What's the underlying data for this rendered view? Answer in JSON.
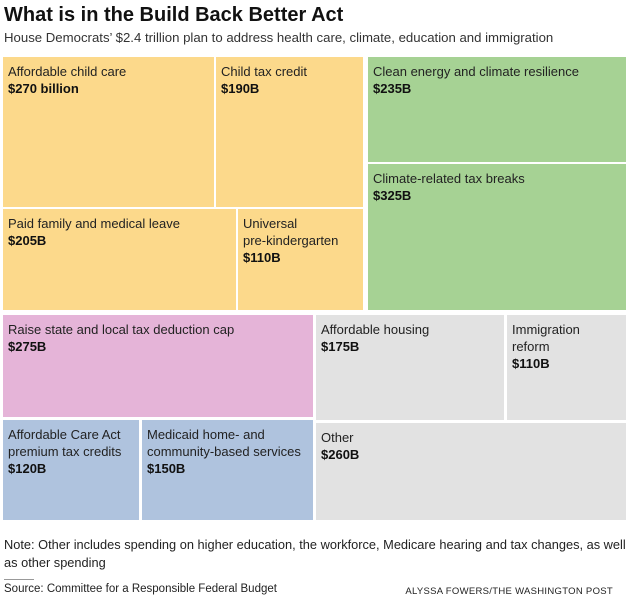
{
  "header": {
    "title": "What is in the Build Back Better Act",
    "subtitle": "House Democrats’ $2.4 trillion plan to address health care, climate, education and immigration"
  },
  "chart_data": {
    "type": "treemap",
    "title": "What is in the Build Back Better Act",
    "subtitle": "House Democrats’ $2.4 trillion plan to address health care, climate, education and immigration",
    "colors": {
      "family": "#fcd98b",
      "climate": "#a6d294",
      "tax": "#e5b4d8",
      "health": "#afc3de",
      "other": "#e2e2e2"
    },
    "items": [
      {
        "label": "Affordable child care",
        "value": 270,
        "value_label": "$270 billion",
        "group": "family"
      },
      {
        "label": "Child tax credit",
        "value": 190,
        "value_label": "$190B",
        "group": "family"
      },
      {
        "label": "Paid family and medical leave",
        "value": 205,
        "value_label": "$205B",
        "group": "family"
      },
      {
        "label": "Universal pre-kindergarten",
        "value": 110,
        "value_label": "$110B",
        "group": "family"
      },
      {
        "label": "Clean energy and climate resilience",
        "value": 235,
        "value_label": "$235B",
        "group": "climate"
      },
      {
        "label": "Climate-related tax breaks",
        "value": 325,
        "value_label": "$325B",
        "group": "climate"
      },
      {
        "label": "Raise state and local tax deduction cap",
        "value": 275,
        "value_label": "$275B",
        "group": "tax"
      },
      {
        "label": "Affordable Care Act premium tax credits",
        "value": 120,
        "value_label": "$120B",
        "group": "health"
      },
      {
        "label": "Medicaid home- and community-based services",
        "value": 150,
        "value_label": "$150B",
        "group": "health"
      },
      {
        "label": "Affordable housing",
        "value": 175,
        "value_label": "$175B",
        "group": "other"
      },
      {
        "label": "Immigration reform",
        "value": 110,
        "value_label": "$110B",
        "group": "other"
      },
      {
        "label": "Other",
        "value": 260,
        "value_label": "$260B",
        "group": "other"
      }
    ]
  },
  "footer": {
    "note": "Note: Other includes spending on higher education, the workforce, Medicare hearing and tax changes, as well as other spending",
    "source": "Source: Committee for a Responsible Federal Budget",
    "credit": "ALYSSA FOWERS/THE WASHINGTON POST"
  }
}
